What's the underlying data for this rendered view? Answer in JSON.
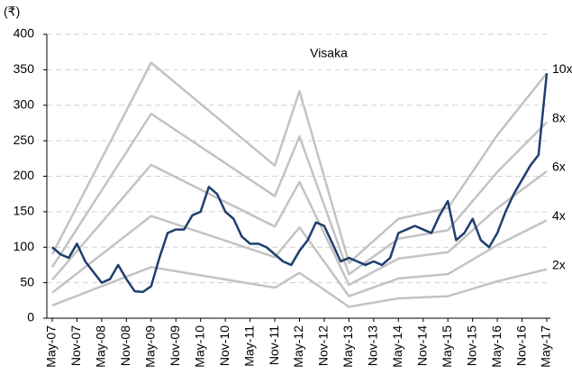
{
  "chart_data": {
    "type": "line",
    "title": "Visaka",
    "y_label": "(₹)",
    "xlim": [
      0,
      120
    ],
    "xticks": [
      {
        "value": 0,
        "label": "May-07"
      },
      {
        "value": 6,
        "label": "Nov-07"
      },
      {
        "value": 12,
        "label": "May-08"
      },
      {
        "value": 18,
        "label": "Nov-08"
      },
      {
        "value": 24,
        "label": "May-09"
      },
      {
        "value": 30,
        "label": "Nov-09"
      },
      {
        "value": 36,
        "label": "May-10"
      },
      {
        "value": 42,
        "label": "Nov-10"
      },
      {
        "value": 48,
        "label": "May-11"
      },
      {
        "value": 54,
        "label": "Nov-11"
      },
      {
        "value": 60,
        "label": "May-12"
      },
      {
        "value": 66,
        "label": "Nov-12"
      },
      {
        "value": 72,
        "label": "May-13"
      },
      {
        "value": 78,
        "label": "Nov-13"
      },
      {
        "value": 84,
        "label": "May-14"
      },
      {
        "value": 90,
        "label": "Nov-14"
      },
      {
        "value": 96,
        "label": "May-15"
      },
      {
        "value": 102,
        "label": "Nov-15"
      },
      {
        "value": 108,
        "label": "May-16"
      },
      {
        "value": 114,
        "label": "Nov-16"
      },
      {
        "value": 120,
        "label": "May-17"
      }
    ],
    "ylim": [
      0,
      400
    ],
    "yticks": [
      0,
      50,
      100,
      150,
      200,
      250,
      300,
      350,
      400
    ],
    "grid": true,
    "series": [
      {
        "name": "10x",
        "color": "#c3c3c3",
        "x": [
          0,
          24,
          54,
          60,
          72,
          84,
          96,
          108,
          120
        ],
        "values": [
          90,
          360,
          215,
          320,
          78,
          140,
          155,
          258,
          345
        ]
      },
      {
        "name": "8x",
        "color": "#c3c3c3",
        "x": [
          0,
          24,
          54,
          60,
          72,
          84,
          96,
          108,
          120
        ],
        "values": [
          72,
          288,
          172,
          256,
          62,
          112,
          124,
          206,
          276
        ]
      },
      {
        "name": "6x",
        "color": "#c3c3c3",
        "x": [
          0,
          24,
          54,
          60,
          72,
          84,
          96,
          108,
          120
        ],
        "values": [
          54,
          216,
          129,
          192,
          47,
          84,
          93,
          155,
          207
        ]
      },
      {
        "name": "4x",
        "color": "#c3c3c3",
        "x": [
          0,
          24,
          54,
          60,
          72,
          84,
          96,
          108,
          120
        ],
        "values": [
          36,
          144,
          86,
          128,
          31,
          56,
          62,
          103,
          138
        ]
      },
      {
        "name": "2x",
        "color": "#c3c3c3",
        "x": [
          0,
          24,
          54,
          60,
          72,
          84,
          96,
          108,
          120
        ],
        "values": [
          18,
          72,
          43,
          64,
          16,
          28,
          31,
          52,
          69
        ]
      },
      {
        "color": "#1f3f6e",
        "x": [
          0,
          2,
          4,
          6,
          8,
          10,
          12,
          14,
          16,
          18,
          20,
          22,
          24,
          26,
          28,
          30,
          32,
          34,
          36,
          38,
          40,
          42,
          44,
          46,
          48,
          50,
          52,
          54,
          56,
          58,
          60,
          62,
          64,
          66,
          68,
          70,
          72,
          74,
          76,
          78,
          80,
          82,
          84,
          86,
          88,
          90,
          92,
          94,
          96,
          98,
          100,
          102,
          104,
          106,
          108,
          110,
          112,
          114,
          116,
          118,
          120
        ],
        "values": [
          100,
          90,
          85,
          105,
          80,
          65,
          50,
          55,
          75,
          55,
          38,
          37,
          45,
          85,
          120,
          125,
          125,
          145,
          150,
          185,
          175,
          150,
          140,
          115,
          105,
          105,
          100,
          90,
          80,
          75,
          95,
          110,
          135,
          130,
          105,
          80,
          85,
          80,
          75,
          80,
          75,
          85,
          120,
          125,
          130,
          125,
          120,
          145,
          165,
          110,
          120,
          140,
          110,
          100,
          120,
          150,
          175,
          195,
          215,
          230,
          345
        ]
      }
    ]
  }
}
